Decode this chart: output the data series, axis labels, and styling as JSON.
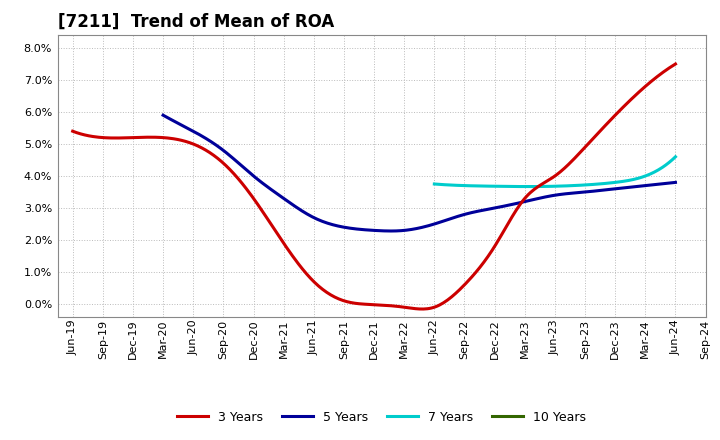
{
  "title": "[7211]  Trend of Mean of ROA",
  "x_labels": [
    "Jun-19",
    "Sep-19",
    "Dec-19",
    "Mar-20",
    "Jun-20",
    "Sep-20",
    "Dec-20",
    "Mar-21",
    "Jun-21",
    "Sep-21",
    "Dec-21",
    "Mar-22",
    "Jun-22",
    "Sep-22",
    "Dec-22",
    "Mar-23",
    "Jun-23",
    "Sep-23",
    "Dec-23",
    "Mar-24",
    "Jun-24",
    "Sep-24"
  ],
  "y_ticks": [
    0.0,
    0.01,
    0.02,
    0.03,
    0.04,
    0.05,
    0.06,
    0.07,
    0.08
  ],
  "ylim": [
    -0.004,
    0.084
  ],
  "series_3y": {
    "color": "#cc0000",
    "x": [
      0,
      1,
      2,
      3,
      4,
      5,
      6,
      7,
      8,
      9,
      10,
      11,
      12,
      13,
      14,
      15,
      16,
      17,
      18,
      19,
      20
    ],
    "y": [
      0.054,
      0.052,
      0.052,
      0.052,
      0.05,
      0.044,
      0.033,
      0.019,
      0.007,
      0.001,
      -0.0002,
      -0.001,
      -0.001,
      0.006,
      0.018,
      0.033,
      0.04,
      0.049,
      0.059,
      0.068,
      0.075
    ]
  },
  "series_5y": {
    "color": "#000099",
    "x": [
      3,
      4,
      5,
      6,
      7,
      8,
      9,
      10,
      11,
      12,
      13,
      14,
      15,
      16,
      17,
      18,
      19,
      20
    ],
    "y": [
      0.059,
      0.054,
      0.048,
      0.04,
      0.033,
      0.027,
      0.024,
      0.023,
      0.023,
      0.025,
      0.028,
      0.03,
      0.032,
      0.034,
      0.035,
      0.036,
      0.037,
      0.038
    ]
  },
  "series_7y": {
    "color": "#00cccc",
    "x": [
      12,
      13,
      14,
      15,
      16,
      17,
      18,
      19,
      20
    ],
    "y": [
      0.0375,
      0.037,
      0.0368,
      0.0367,
      0.0368,
      0.0372,
      0.038,
      0.04,
      0.046
    ]
  },
  "series_10y": {
    "color": "#336600",
    "x": [],
    "y": []
  },
  "legend_labels": [
    "3 Years",
    "5 Years",
    "7 Years",
    "10 Years"
  ],
  "legend_colors": [
    "#cc0000",
    "#000099",
    "#00cccc",
    "#336600"
  ],
  "background_color": "#ffffff",
  "grid_color": "#bbbbbb",
  "title_fontsize": 12,
  "tick_fontsize": 8
}
